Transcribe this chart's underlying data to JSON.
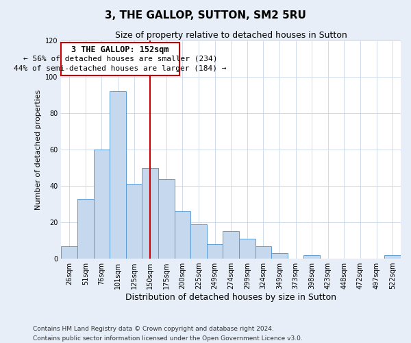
{
  "title": "3, THE GALLOP, SUTTON, SM2 5RU",
  "subtitle": "Size of property relative to detached houses in Sutton",
  "xlabel": "Distribution of detached houses by size in Sutton",
  "ylabel": "Number of detached properties",
  "bar_labels": [
    "26sqm",
    "51sqm",
    "76sqm",
    "101sqm",
    "125sqm",
    "150sqm",
    "175sqm",
    "200sqm",
    "225sqm",
    "249sqm",
    "274sqm",
    "299sqm",
    "324sqm",
    "349sqm",
    "373sqm",
    "398sqm",
    "423sqm",
    "448sqm",
    "472sqm",
    "497sqm",
    "522sqm"
  ],
  "bar_values": [
    7,
    33,
    60,
    92,
    41,
    50,
    44,
    26,
    19,
    8,
    15,
    11,
    7,
    3,
    0,
    2,
    0,
    0,
    0,
    0,
    2
  ],
  "bar_color": "#c5d8ed",
  "bar_edge_color": "#5b9bd5",
  "ylim": [
    0,
    120
  ],
  "yticks": [
    0,
    20,
    40,
    60,
    80,
    100,
    120
  ],
  "vline_x_index": 5,
  "vline_color": "#cc0000",
  "annotation_title": "3 THE GALLOP: 152sqm",
  "annotation_line1": "← 56% of detached houses are smaller (234)",
  "annotation_line2": "44% of semi-detached houses are larger (184) →",
  "annotation_box_color": "#cc0000",
  "footer_line1": "Contains HM Land Registry data © Crown copyright and database right 2024.",
  "footer_line2": "Contains public sector information licensed under the Open Government Licence v3.0.",
  "background_color": "#e8eef7",
  "plot_bg_color": "#ffffff",
  "title_fontsize": 11,
  "subtitle_fontsize": 9,
  "xlabel_fontsize": 9,
  "ylabel_fontsize": 8,
  "tick_fontsize": 7,
  "footer_fontsize": 6.5
}
